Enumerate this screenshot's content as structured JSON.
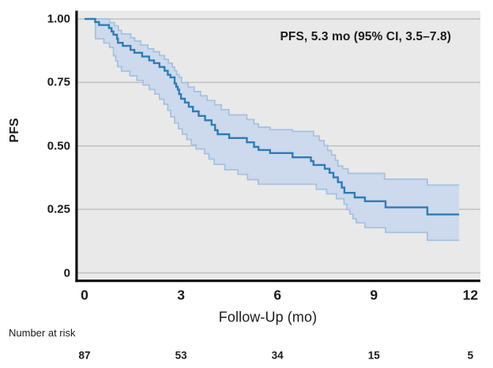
{
  "figure": {
    "annotation": "PFS, 5.3 mo (95% CI, 3.5–7.8)",
    "y_axis_label": "PFS",
    "x_axis_label": "Follow-Up (mo)",
    "risk_header": "Number at risk"
  },
  "colors": {
    "panel_background": "#e9e9e9",
    "gridline": "#c0c0c0",
    "axis": "#111111",
    "km_line": "#2f7cb5",
    "ci_edge_line": "#a3c1e0",
    "ci_band_fill": "#cdd9ec",
    "text": "#1b1b1b"
  },
  "chart_data": {
    "type": "line",
    "subtype": "kaplan-meier",
    "title": "",
    "xlabel": "Follow-Up (mo)",
    "ylabel": "PFS",
    "xlim": [
      0,
      12.3
    ],
    "ylim": [
      0,
      1.0
    ],
    "x_ticks": [
      0,
      3,
      6,
      9,
      12
    ],
    "x_tick_labels": [
      "0",
      "3",
      "6",
      "9",
      "12"
    ],
    "y_ticks": [
      1.0,
      0.75,
      0.5,
      0.25,
      0
    ],
    "y_tick_labels": [
      "1.00",
      "0.75",
      "0.50",
      "0.25",
      "0"
    ],
    "grid": "horizontal",
    "legend": "none",
    "annotation": "PFS, 5.3 mo (95% CI, 3.5–7.8)",
    "median_pfs_mo": 5.3,
    "median_ci95_mo": [
      3.5,
      7.8
    ],
    "curve_end_mo": 11.65,
    "number_at_risk": {
      "times": [
        0,
        3,
        6,
        9,
        12
      ],
      "counts": [
        87,
        53,
        34,
        15,
        5
      ]
    },
    "series": [
      {
        "name": "PFS Kaplan-Meier estimate",
        "role": "main",
        "steps": [
          [
            0.0,
            1.0
          ],
          [
            0.33,
            0.988
          ],
          [
            0.45,
            0.976
          ],
          [
            0.76,
            0.964
          ],
          [
            0.84,
            0.951
          ],
          [
            0.9,
            0.938
          ],
          [
            1.01,
            0.922
          ],
          [
            1.04,
            0.906
          ],
          [
            1.19,
            0.894
          ],
          [
            1.43,
            0.878
          ],
          [
            1.55,
            0.867
          ],
          [
            1.79,
            0.852
          ],
          [
            2.01,
            0.837
          ],
          [
            2.16,
            0.826
          ],
          [
            2.33,
            0.811
          ],
          [
            2.49,
            0.796
          ],
          [
            2.59,
            0.78
          ],
          [
            2.67,
            0.77
          ],
          [
            2.8,
            0.746
          ],
          [
            2.85,
            0.733
          ],
          [
            2.9,
            0.722
          ],
          [
            2.94,
            0.704
          ],
          [
            3.0,
            0.686
          ],
          [
            3.12,
            0.671
          ],
          [
            3.24,
            0.654
          ],
          [
            3.37,
            0.636
          ],
          [
            3.55,
            0.618
          ],
          [
            3.75,
            0.601
          ],
          [
            3.95,
            0.583
          ],
          [
            4.06,
            0.562
          ],
          [
            4.14,
            0.546
          ],
          [
            4.5,
            0.531
          ],
          [
            5.05,
            0.514
          ],
          [
            5.27,
            0.496
          ],
          [
            5.41,
            0.484
          ],
          [
            5.77,
            0.472
          ],
          [
            6.47,
            0.455
          ],
          [
            7.04,
            0.44
          ],
          [
            7.12,
            0.425
          ],
          [
            7.47,
            0.41
          ],
          [
            7.62,
            0.394
          ],
          [
            7.74,
            0.376
          ],
          [
            7.88,
            0.357
          ],
          [
            8.0,
            0.336
          ],
          [
            8.08,
            0.315
          ],
          [
            8.4,
            0.297
          ],
          [
            8.72,
            0.282
          ],
          [
            9.36,
            0.258
          ],
          [
            10.66,
            0.23
          ]
        ]
      },
      {
        "name": "95% CI upper bound",
        "role": "ci_upper",
        "steps": [
          [
            0.0,
            1.0
          ],
          [
            0.78,
            0.986
          ],
          [
            0.93,
            0.973
          ],
          [
            1.05,
            0.955
          ],
          [
            1.15,
            0.941
          ],
          [
            1.44,
            0.926
          ],
          [
            1.56,
            0.913
          ],
          [
            1.75,
            0.897
          ],
          [
            1.97,
            0.882
          ],
          [
            2.15,
            0.871
          ],
          [
            2.33,
            0.856
          ],
          [
            2.49,
            0.841
          ],
          [
            2.61,
            0.826
          ],
          [
            2.73,
            0.811
          ],
          [
            2.8,
            0.796
          ],
          [
            2.87,
            0.781
          ],
          [
            2.94,
            0.77
          ],
          [
            3.02,
            0.749
          ],
          [
            3.22,
            0.732
          ],
          [
            3.41,
            0.714
          ],
          [
            3.61,
            0.697
          ],
          [
            3.81,
            0.679
          ],
          [
            4.05,
            0.662
          ],
          [
            4.25,
            0.643
          ],
          [
            4.49,
            0.622
          ],
          [
            5.05,
            0.604
          ],
          [
            5.27,
            0.587
          ],
          [
            5.41,
            0.574
          ],
          [
            5.77,
            0.564
          ],
          [
            6.47,
            0.557
          ],
          [
            7.12,
            0.539
          ],
          [
            7.3,
            0.521
          ],
          [
            7.45,
            0.501
          ],
          [
            7.56,
            0.482
          ],
          [
            7.68,
            0.464
          ],
          [
            7.8,
            0.443
          ],
          [
            7.88,
            0.421
          ],
          [
            8.03,
            0.41
          ],
          [
            8.2,
            0.392
          ],
          [
            9.33,
            0.369
          ],
          [
            10.66,
            0.346
          ]
        ]
      },
      {
        "name": "95% CI lower bound",
        "role": "ci_lower",
        "steps": [
          [
            0.0,
            1.0
          ],
          [
            0.34,
            0.922
          ],
          [
            0.6,
            0.905
          ],
          [
            0.78,
            0.888
          ],
          [
            0.9,
            0.855
          ],
          [
            0.97,
            0.835
          ],
          [
            1.03,
            0.812
          ],
          [
            1.15,
            0.794
          ],
          [
            1.41,
            0.776
          ],
          [
            1.63,
            0.758
          ],
          [
            1.82,
            0.74
          ],
          [
            2.01,
            0.722
          ],
          [
            2.19,
            0.704
          ],
          [
            2.33,
            0.684
          ],
          [
            2.47,
            0.664
          ],
          [
            2.59,
            0.64
          ],
          [
            2.68,
            0.615
          ],
          [
            2.8,
            0.59
          ],
          [
            2.92,
            0.567
          ],
          [
            3.04,
            0.546
          ],
          [
            3.18,
            0.525
          ],
          [
            3.32,
            0.504
          ],
          [
            3.47,
            0.488
          ],
          [
            3.73,
            0.469
          ],
          [
            3.87,
            0.448
          ],
          [
            4.03,
            0.427
          ],
          [
            4.36,
            0.406
          ],
          [
            4.77,
            0.388
          ],
          [
            5.07,
            0.367
          ],
          [
            5.4,
            0.349
          ],
          [
            7.21,
            0.329
          ],
          [
            7.53,
            0.311
          ],
          [
            7.83,
            0.292
          ],
          [
            8.07,
            0.27
          ],
          [
            8.16,
            0.249
          ],
          [
            8.25,
            0.231
          ],
          [
            8.35,
            0.213
          ],
          [
            8.45,
            0.197
          ],
          [
            8.72,
            0.178
          ],
          [
            9.36,
            0.159
          ],
          [
            10.66,
            0.128
          ]
        ]
      }
    ]
  }
}
